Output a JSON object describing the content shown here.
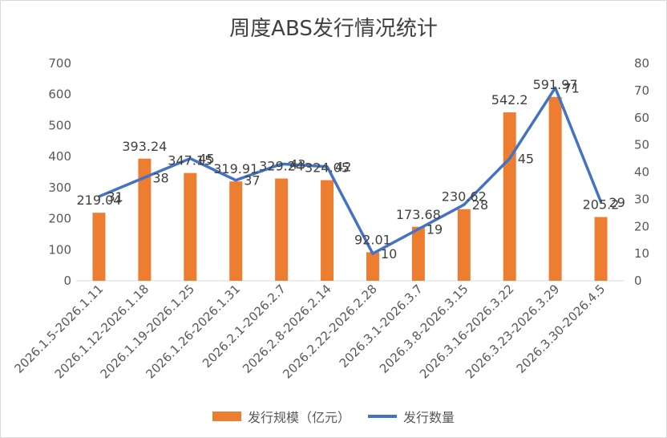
{
  "chart_data": {
    "type": "bar",
    "title": "周度ABS发行情况统计",
    "categories": [
      "2026.1.5-2026.1.11",
      "2026.1.12-2026.1.18",
      "2026.1.19-2026.1.25",
      "2026.1.26-2026.1.31",
      "2026.2.1-2026.2.7",
      "2026.2.8-2026.2.14",
      "2026.2.22-2026.2.28",
      "2026.3.1-2026.3.7",
      "2026.3.8-2026.3.15",
      "2026.3.16-2026.3.22",
      "2026.3.23-2026.3.29",
      "2026.3.30-2026.4.5"
    ],
    "series": [
      {
        "name": "发行规模（亿元）",
        "type": "bar",
        "axis": "left",
        "color": "#ED7D31",
        "values": [
          219.04,
          393.24,
          347.15,
          319.91,
          329.24,
          324.05,
          92.01,
          173.68,
          230.62,
          542.2,
          591.97,
          205.2
        ],
        "labels": [
          "219.04",
          "393.24",
          "347.15",
          "319.91",
          "329.24",
          "324.05",
          "92.01",
          "173.68",
          "230.62",
          "542.2",
          "591.97",
          "205.2"
        ]
      },
      {
        "name": "发行数量",
        "type": "line",
        "axis": "right",
        "color": "#4472C4",
        "values": [
          31,
          38,
          45,
          37,
          43,
          42,
          10,
          19,
          28,
          45,
          71,
          29
        ],
        "labels": [
          "31",
          "38",
          "45",
          "37",
          "43",
          "42",
          "10",
          "19",
          "28",
          "45",
          "71",
          "29"
        ]
      }
    ],
    "y_left": {
      "min": 0,
      "max": 700,
      "step": 100,
      "ticks": [
        "0",
        "100",
        "200",
        "300",
        "400",
        "500",
        "600",
        "700"
      ]
    },
    "y_right": {
      "min": 0,
      "max": 80,
      "step": 10,
      "ticks": [
        "0",
        "10",
        "20",
        "30",
        "40",
        "50",
        "60",
        "70",
        "80"
      ]
    },
    "grid": false,
    "legend": "bottom"
  }
}
